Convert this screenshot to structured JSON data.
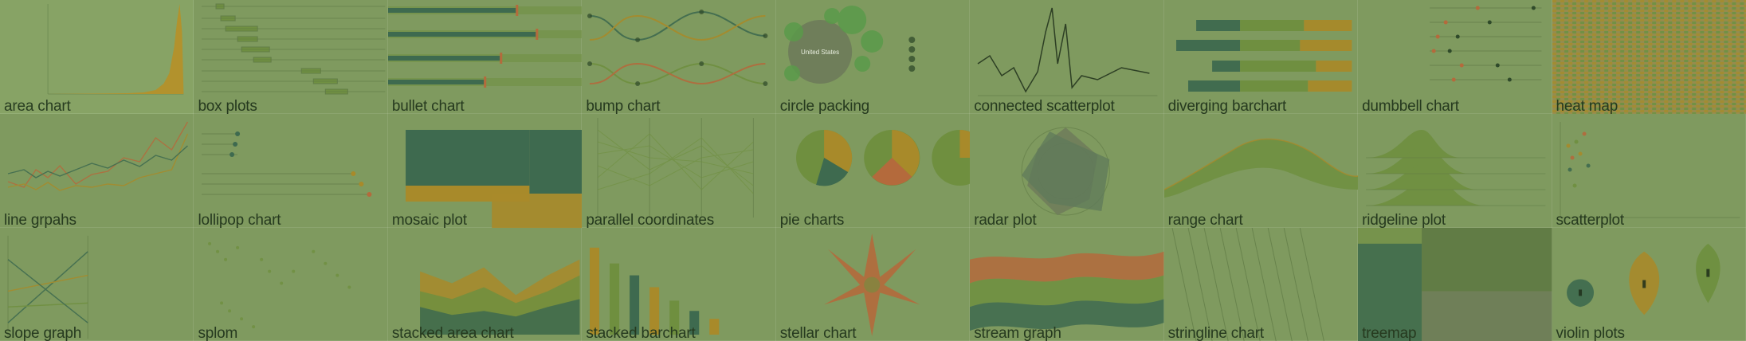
{
  "gallery": {
    "tiles": [
      {
        "label": "area chart",
        "icon": "area-chart-thumbnail"
      },
      {
        "label": "box plots",
        "icon": "box-plot-thumbnail"
      },
      {
        "label": "bullet chart",
        "icon": "bullet-chart-thumbnail"
      },
      {
        "label": "bump chart",
        "icon": "bump-chart-thumbnail"
      },
      {
        "label": "circle packing",
        "icon": "circle-packing-thumbnail",
        "text": "United States"
      },
      {
        "label": "connected scatterplot",
        "icon": "connected-scatterplot-thumbnail"
      },
      {
        "label": "diverging barchart",
        "icon": "diverging-barchart-thumbnail"
      },
      {
        "label": "dumbbell chart",
        "icon": "dumbbell-chart-thumbnail"
      },
      {
        "label": "heat map",
        "icon": "heat-map-thumbnail"
      },
      {
        "label": "line grpahs",
        "icon": "line-graph-thumbnail"
      },
      {
        "label": "lollipop chart",
        "icon": "lollipop-chart-thumbnail"
      },
      {
        "label": "mosaic plot",
        "icon": "mosaic-plot-thumbnail"
      },
      {
        "label": "parallel coordinates",
        "icon": "parallel-coordinates-thumbnail"
      },
      {
        "label": "pie charts",
        "icon": "pie-charts-thumbnail"
      },
      {
        "label": "radar plot",
        "icon": "radar-plot-thumbnail"
      },
      {
        "label": "range chart",
        "icon": "range-chart-thumbnail"
      },
      {
        "label": "ridgeline plot",
        "icon": "ridgeline-plot-thumbnail"
      },
      {
        "label": "scatterplot",
        "icon": "scatterplot-thumbnail"
      },
      {
        "label": "slope graph",
        "icon": "slope-graph-thumbnail"
      },
      {
        "label": "splom",
        "icon": "splom-thumbnail"
      },
      {
        "label": "stacked area chart",
        "icon": "stacked-area-chart-thumbnail"
      },
      {
        "label": "stacked barchart",
        "icon": "stacked-barchart-thumbnail"
      },
      {
        "label": "stellar chart",
        "icon": "stellar-chart-thumbnail"
      },
      {
        "label": "stream graph",
        "icon": "stream-graph-thumbnail"
      },
      {
        "label": "stringline chart",
        "icon": "stringline-chart-thumbnail"
      },
      {
        "label": "treemap",
        "icon": "treemap-thumbnail"
      },
      {
        "label": "violin plots",
        "icon": "violin-plots-thumbnail"
      }
    ]
  },
  "theme": {
    "overlay": "#7f9a5f",
    "dark": "#3e6a4f",
    "olive": "#6f8f3f",
    "gold": "#a88a2a",
    "brown": "#b46a3c",
    "text": "#263a1f"
  }
}
